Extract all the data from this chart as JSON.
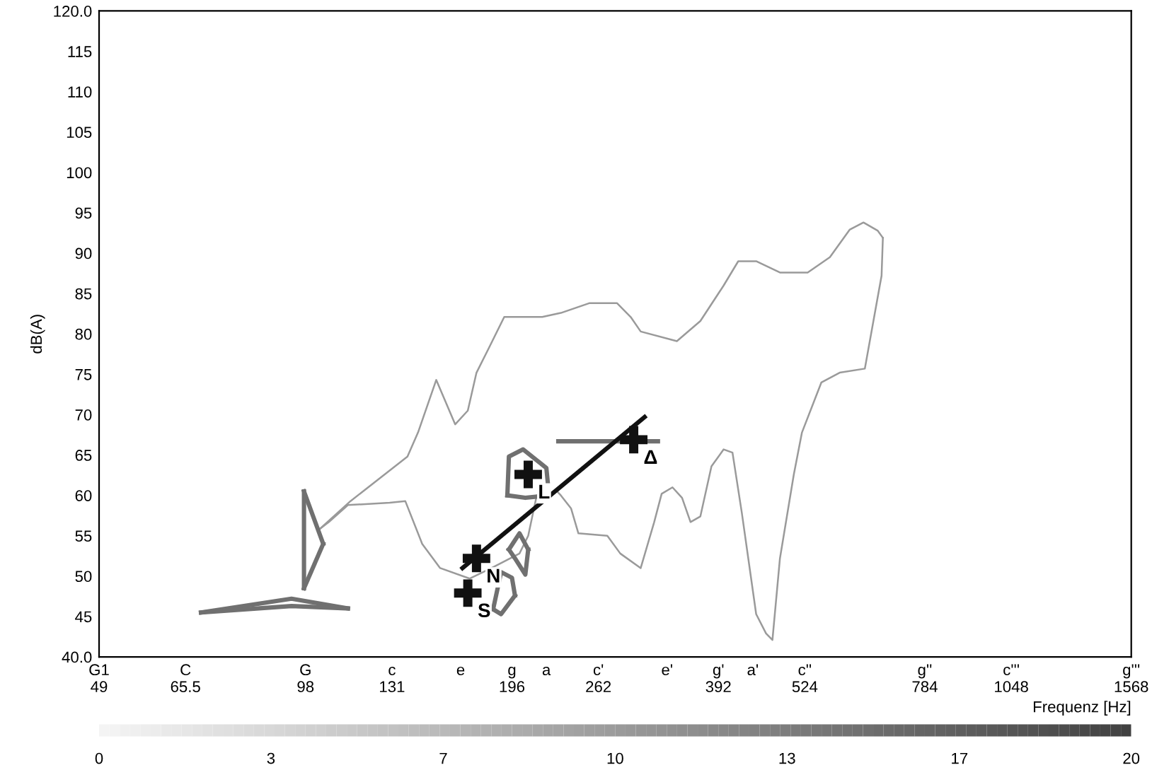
{
  "chart_data": {
    "type": "line",
    "ylabel": "dB(A)",
    "xlabel": "Frequenz [Hz]",
    "log": "x",
    "grid": false,
    "xlim": [
      49,
      1568
    ],
    "ylim": [
      40,
      120
    ],
    "xticks": [
      {
        "value": 49,
        "label": "G1\n49"
      },
      {
        "value": 65.5,
        "label": "C\n65.5"
      },
      {
        "value": 98,
        "label": "G\n98"
      },
      {
        "value": 131,
        "label": "c\n131"
      },
      {
        "value": 165,
        "label": "e"
      },
      {
        "value": 196,
        "label": "g\n196"
      },
      {
        "value": 220,
        "label": "a"
      },
      {
        "value": 262,
        "label": "c'\n262"
      },
      {
        "value": 330,
        "label": "e'"
      },
      {
        "value": 392,
        "label": "g'\n392"
      },
      {
        "value": 440,
        "label": "a'"
      },
      {
        "value": 524,
        "label": "c''\n524"
      },
      {
        "value": 784,
        "label": "g''\n784"
      },
      {
        "value": 1048,
        "label": "c'''\n1048"
      },
      {
        "value": 1568,
        "label": "g'''\n1568"
      }
    ],
    "yticks": [
      {
        "value": 40,
        "label": "40.0"
      },
      45,
      50,
      55,
      60,
      65,
      70,
      75,
      80,
      85,
      90,
      95,
      100,
      105,
      110,
      115,
      {
        "value": 120,
        "label": "120.0"
      }
    ],
    "clim": [
      0,
      20
    ],
    "cticks": [
      0,
      {
        "value": 3.33,
        "label": "3"
      },
      {
        "value": 6.67,
        "label": "7"
      },
      10,
      {
        "value": 13.33,
        "label": "13"
      },
      {
        "value": 16.67,
        "label": "17"
      },
      20
    ],
    "series": [
      {
        "color": "#9a9a9a",
        "x": [
          103,
          114,
          138,
          143,
          152,
          162,
          169,
          174,
          181,
          191,
          217,
          231,
          254,
          279,
          292,
          302,
          341,
          369,
          399,
          419,
          445,
          482,
          529,
          570,
          609,
          638,
          669,
          681
        ],
        "values": [
          55.9,
          59.3,
          64.8,
          67.8,
          74.3,
          68.8,
          70.5,
          75.2,
          78.1,
          82.1,
          82.1,
          82.6,
          83.8,
          83.8,
          82.1,
          80.3,
          79.1,
          81.6,
          86.0,
          89.0,
          89.0,
          87.6,
          87.6,
          89.5,
          92.9,
          93.8,
          92.8,
          91.9
        ]
      },
      {
        "color": "#9a9a9a",
        "x": [
          103,
          106,
          113,
          130,
          137,
          145,
          154,
          170,
          183,
          201,
          207,
          213,
          228,
          231,
          239,
          245,
          270,
          282,
          302,
          316,
          324,
          336,
          347,
          357,
          369,
          383,
          399,
          411,
          424,
          445,
          460,
          470,
          482,
          505,
          519,
          554,
          589,
          641,
          678,
          681
        ],
        "values": [
          55.9,
          56.7,
          58.8,
          59.1,
          59.3,
          54.0,
          51.0,
          49.7,
          51.0,
          52.8,
          55.0,
          60.0,
          60.5,
          60.0,
          58.4,
          55.3,
          55.0,
          52.8,
          51.0,
          56.7,
          60.2,
          61.0,
          59.7,
          56.7,
          57.4,
          63.6,
          65.7,
          65.3,
          57.9,
          45.3,
          42.9,
          42.1,
          52.2,
          62.6,
          67.8,
          74.0,
          75.2,
          75.7,
          87.2,
          91.9
        ]
      },
      {
        "color": "#707070",
        "x": [
          97.5,
          104
        ],
        "values": [
          60.5,
          54
        ]
      },
      {
        "color": "#707070",
        "x": [
          97.5,
          104
        ],
        "values": [
          48.5,
          54
        ]
      },
      {
        "color": "#707070",
        "x": [
          97.5,
          97.5
        ],
        "values": [
          48.5,
          60.5
        ]
      },
      {
        "color": "#707070",
        "x": [
          69,
          93.5,
          113
        ],
        "values": [
          45.5,
          47.2,
          46
        ]
      },
      {
        "color": "#707070",
        "x": [
          69,
          93.5,
          113
        ],
        "values": [
          45.5,
          46.3,
          46
        ]
      },
      {
        "color": "#707070",
        "x": [
          193,
          194,
          203.5,
          220,
          222
        ],
        "values": [
          60,
          64.8,
          65.7,
          63.4,
          60
        ]
      },
      {
        "color": "#707070",
        "x": [
          193,
          205,
          222
        ],
        "values": [
          60,
          59.7,
          60
        ]
      },
      {
        "color": "#707070",
        "x": [
          194,
          201,
          207
        ],
        "values": [
          53.3,
          55.3,
          53.3
        ]
      },
      {
        "color": "#707070",
        "x": [
          194,
          198,
          205,
          207
        ],
        "values": [
          53.3,
          52.2,
          50.2,
          53.3
        ]
      },
      {
        "color": "#707070",
        "x": [
          184,
          189,
          196,
          198
        ],
        "values": [
          45.9,
          50.5,
          49.8,
          47.6
        ]
      },
      {
        "color": "#707070",
        "x": [
          184,
          189,
          198
        ],
        "values": [
          45.9,
          45.3,
          47.6
        ]
      },
      {
        "color": "#707070",
        "x": [
          229,
          320
        ],
        "values": [
          66.7,
          66.7
        ]
      },
      {
        "color": "#111111",
        "x": [
          166,
          306
        ],
        "values": [
          51.0,
          69.7
        ]
      },
      {
        "type": "scatter",
        "color": "#111111",
        "marker": "cross",
        "x": [
          169,
          174,
          207,
          295
        ],
        "values": [
          47.9,
          52.2,
          62.6,
          66.9
        ]
      }
    ],
    "annotations": [
      {
        "text": "S",
        "x": 169,
        "y": 47.9
      },
      {
        "text": "N",
        "x": 174,
        "y": 52.2
      },
      {
        "text": "L",
        "x": 207,
        "y": 62.6
      },
      {
        "text": "Δ",
        "x": 295,
        "y": 66.9
      }
    ]
  }
}
